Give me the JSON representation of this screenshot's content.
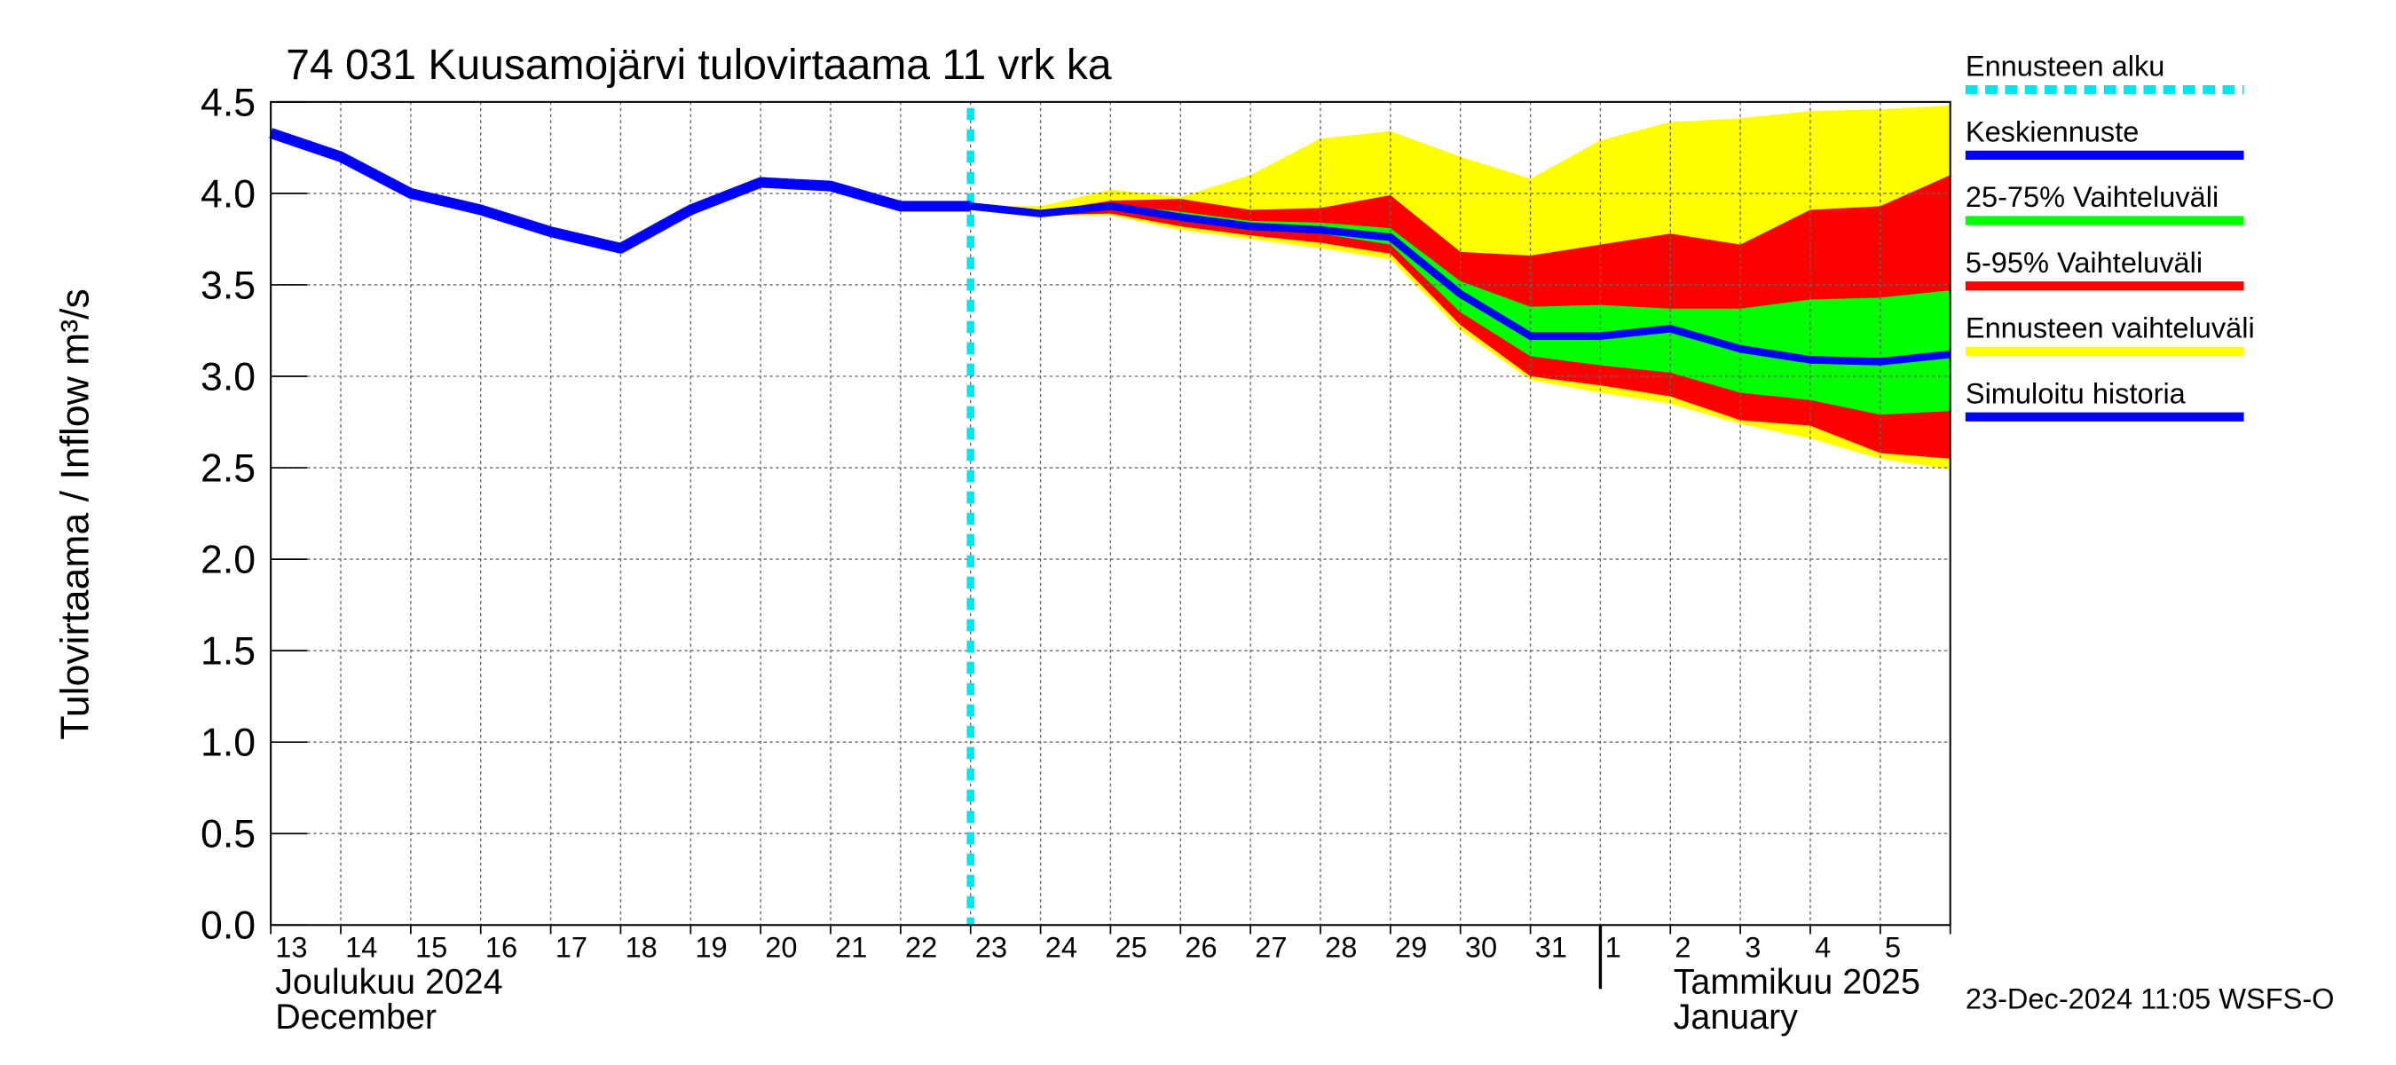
{
  "chart_data": {
    "type": "line",
    "title": "74 031 Kuusamojärvi tulovirtaama 11 vrk ka",
    "y_label": "Tulovirtaama / Inflow    m³/s",
    "month_labels": [
      {
        "fi": "Joulukuu  2024",
        "en": "December",
        "at": "13"
      },
      {
        "fi": "Tammikuu  2025",
        "en": "January",
        "at": "1"
      }
    ],
    "timestamp": "23-Dec-2024 11:05 WSFS-O",
    "categories": [
      "13",
      "14",
      "15",
      "16",
      "17",
      "18",
      "19",
      "20",
      "21",
      "22",
      "23",
      "24",
      "25",
      "26",
      "27",
      "28",
      "29",
      "30",
      "31",
      "1",
      "2",
      "3",
      "4",
      "5",
      null
    ],
    "ylim": [
      0,
      4.5
    ],
    "yticks": [
      {
        "value": 0,
        "label": "0.0"
      },
      0.5,
      {
        "value": 1,
        "label": "1.0"
      },
      1.5,
      {
        "value": 2,
        "label": "2.0"
      },
      2.5,
      {
        "value": 3,
        "label": "3.0"
      },
      3.5,
      {
        "value": 4,
        "label": "4.0"
      },
      4.5
    ],
    "grid": true,
    "series": [
      {
        "name": "Ennusteen alku",
        "color": "#00e5ee",
        "kind": "vline",
        "at": "23"
      },
      {
        "name": "Keskiennuste",
        "color": "#0000ff",
        "kind": "line",
        "values": [
          null,
          null,
          null,
          null,
          null,
          null,
          null,
          null,
          null,
          null,
          3.93,
          3.89,
          3.93,
          3.87,
          3.82,
          3.8,
          3.76,
          3.45,
          3.22,
          3.22,
          3.26,
          3.15,
          3.09,
          3.08,
          3.12
        ]
      },
      {
        "name": "25-75% Vaihteluväli",
        "color": "#00ff00",
        "kind": "band",
        "upper": [
          null,
          null,
          null,
          null,
          null,
          null,
          null,
          null,
          null,
          null,
          3.93,
          3.89,
          3.94,
          3.9,
          3.85,
          3.84,
          3.81,
          3.52,
          3.38,
          3.39,
          3.37,
          3.37,
          3.42,
          3.43,
          3.47
        ],
        "lower": [
          null,
          null,
          null,
          null,
          null,
          null,
          null,
          null,
          null,
          null,
          3.93,
          3.89,
          3.92,
          3.85,
          3.8,
          3.78,
          3.72,
          3.35,
          3.11,
          3.06,
          3.02,
          2.91,
          2.87,
          2.79,
          2.81
        ]
      },
      {
        "name": "5-95% Vaihteluväli",
        "color": "#ff0000",
        "kind": "band",
        "upper": [
          null,
          null,
          null,
          null,
          null,
          null,
          null,
          null,
          null,
          null,
          3.93,
          3.9,
          3.96,
          3.97,
          3.91,
          3.92,
          3.99,
          3.68,
          3.66,
          3.72,
          3.78,
          3.72,
          3.91,
          3.93,
          4.1
        ],
        "lower": [
          null,
          null,
          null,
          null,
          null,
          null,
          null,
          null,
          null,
          null,
          3.93,
          3.88,
          3.89,
          3.82,
          3.77,
          3.73,
          3.67,
          3.28,
          3.0,
          2.95,
          2.89,
          2.76,
          2.73,
          2.58,
          2.55
        ]
      },
      {
        "name": "Ennusteen vaihteluväli",
        "color": "#ffff00",
        "kind": "band",
        "upper": [
          null,
          null,
          null,
          null,
          null,
          null,
          null,
          null,
          null,
          null,
          3.93,
          3.93,
          4.02,
          3.98,
          4.1,
          4.3,
          4.34,
          4.2,
          4.08,
          4.29,
          4.39,
          4.41,
          4.45,
          4.46,
          4.48
        ],
        "lower": [
          null,
          null,
          null,
          null,
          null,
          null,
          null,
          null,
          null,
          null,
          3.93,
          3.88,
          3.88,
          3.8,
          3.75,
          3.7,
          3.64,
          3.25,
          2.98,
          2.91,
          2.85,
          2.74,
          2.66,
          2.55,
          2.49
        ]
      },
      {
        "name": "Simuloitu historia",
        "color": "#0000ff",
        "kind": "line",
        "width": 7,
        "values": [
          4.33,
          4.2,
          4.0,
          3.91,
          3.79,
          3.7,
          3.91,
          4.06,
          4.04,
          3.93,
          3.93,
          null,
          null,
          null,
          null,
          null,
          null,
          null,
          null,
          null,
          null,
          null,
          null,
          null,
          null
        ]
      }
    ]
  }
}
